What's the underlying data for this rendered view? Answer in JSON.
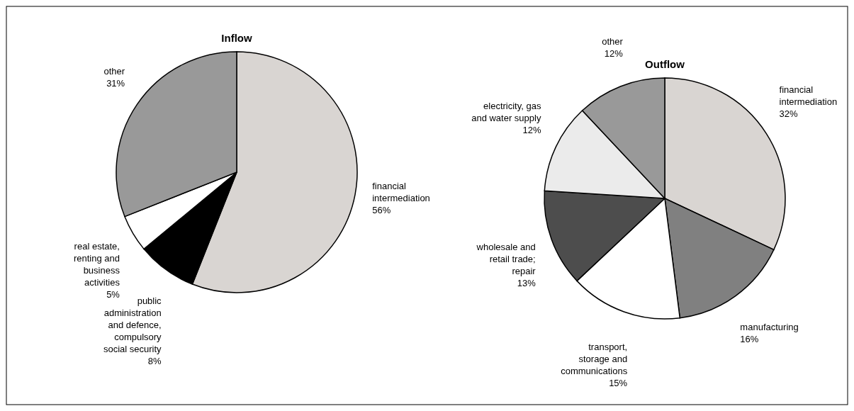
{
  "chart_data": [
    {
      "type": "pie",
      "title": "Inflow",
      "categories": [
        "financial intermediation",
        "public administration and defence, compulsory social security",
        "real estate, renting and business activities",
        "other"
      ],
      "values": [
        56,
        8,
        5,
        31
      ],
      "colors": [
        "#d9d5d2",
        "#000000",
        "#ffffff",
        "#999999"
      ],
      "value_labels": [
        "56%",
        "8%",
        "5%",
        "31%"
      ]
    },
    {
      "type": "pie",
      "title": "Outflow",
      "categories": [
        "financial intermediation",
        "manufacturing",
        "transport, storage and communications",
        "wholesale and retail trade; repair",
        "electricity, gas and water supply",
        "other"
      ],
      "values": [
        32,
        16,
        15,
        13,
        12,
        12
      ],
      "colors": [
        "#d9d5d2",
        "#808080",
        "#ffffff",
        "#4d4d4d",
        "#ebebeb",
        "#999999"
      ],
      "value_labels": [
        "32%",
        "16%",
        "15%",
        "13%",
        "12%",
        "12%"
      ]
    }
  ]
}
